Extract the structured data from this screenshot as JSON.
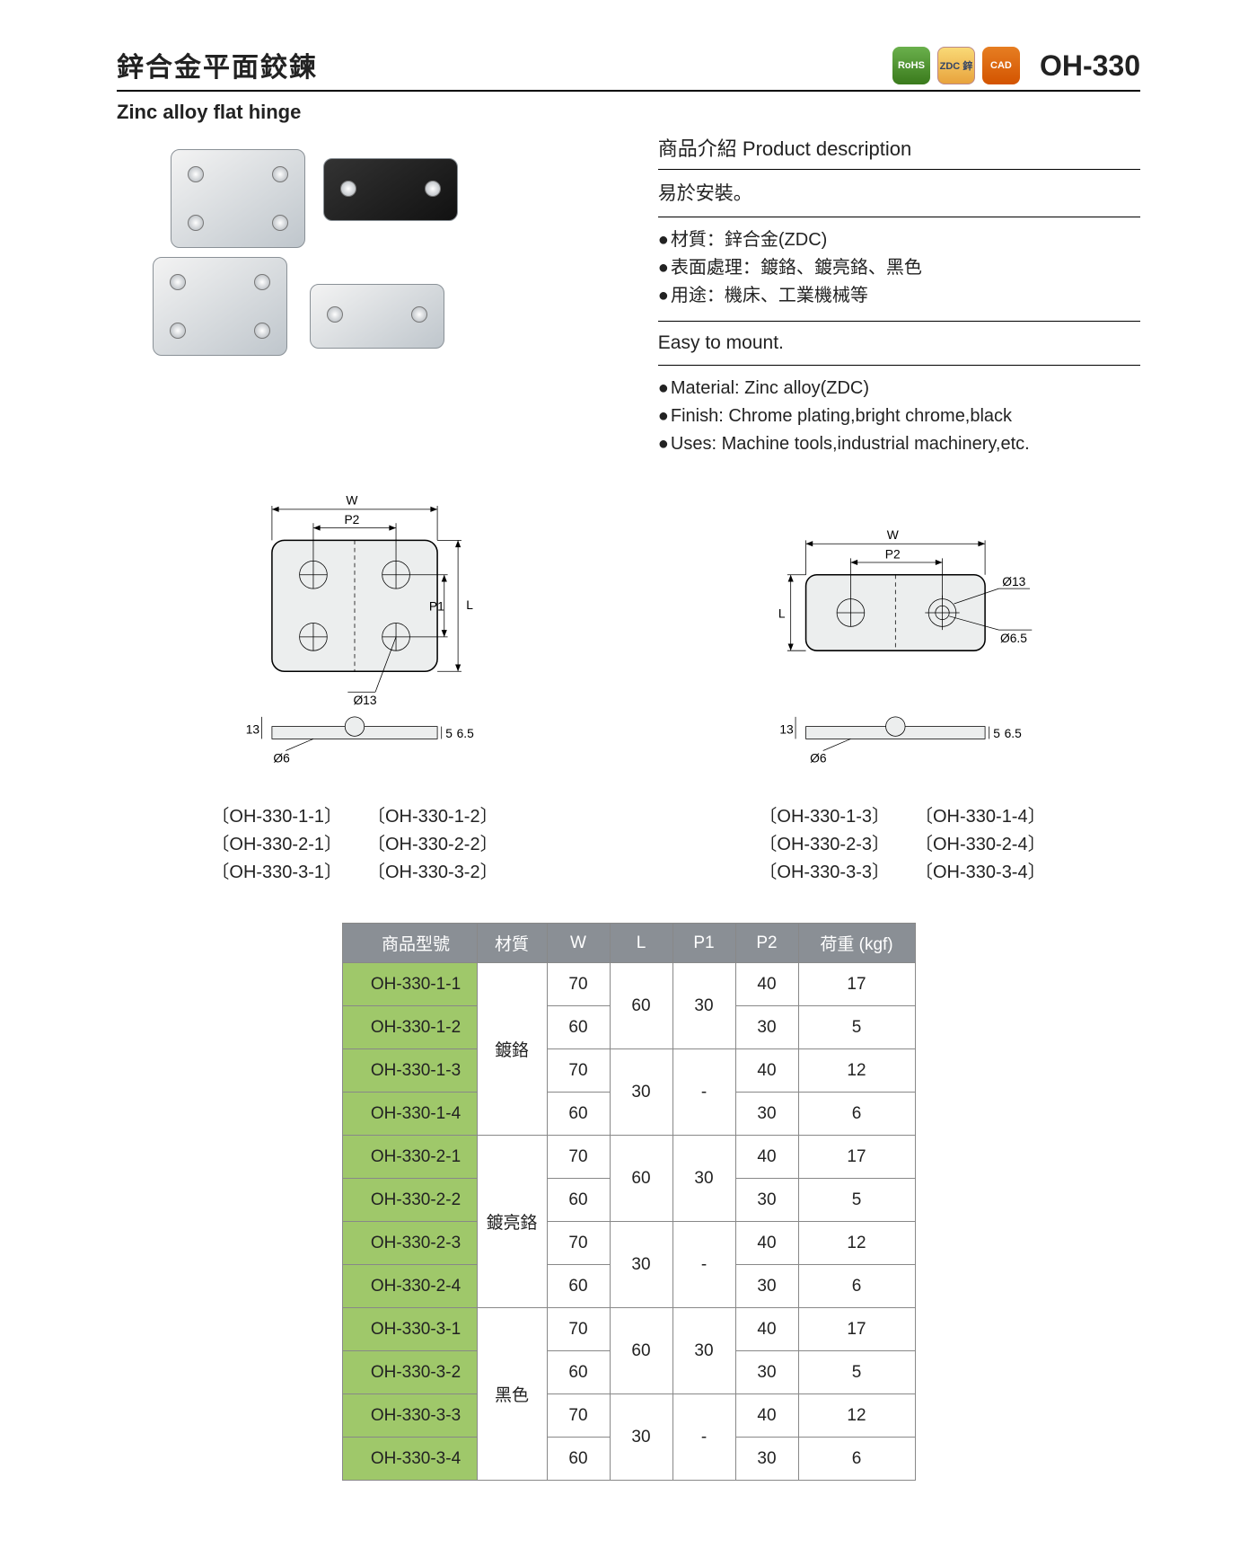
{
  "header": {
    "title_zh": "鋅合金平面鉸鍊",
    "title_en": "Zinc alloy flat hinge",
    "badges": [
      "RoHS",
      "ZDC 鋅",
      "CAD"
    ],
    "product_code": "OH-330"
  },
  "description": {
    "heading": "商品介紹 Product description",
    "sub_zh": "易於安裝。",
    "bullets_zh": [
      "材質：鋅合金(ZDC)",
      "表面處理：鍍鉻、鍍亮鉻、黑色",
      "用途：機床、工業機械等"
    ],
    "easy_en": "Easy to mount.",
    "bullets_en": [
      "Material: Zinc alloy(ZDC)",
      "Finish: Chrome plating,bright chrome,black",
      "Uses: Machine tools,industrial machinery,etc."
    ]
  },
  "diagrams": {
    "left": {
      "labels": {
        "W": "W",
        "P2": "P2",
        "P1": "P1",
        "L": "L",
        "d13": "Ø13",
        "d6": "Ø6",
        "t13": "13",
        "t5": "5",
        "t65": "6.5"
      },
      "models_col1": [
        "〔OH-330-1-1〕",
        "〔OH-330-2-1〕",
        "〔OH-330-3-1〕"
      ],
      "models_col2": [
        "〔OH-330-1-2〕",
        "〔OH-330-2-2〕",
        "〔OH-330-3-2〕"
      ]
    },
    "right": {
      "labels": {
        "W": "W",
        "P2": "P2",
        "L": "L",
        "d13": "Ø13",
        "d65": "Ø6.5",
        "d6": "Ø6",
        "t13": "13",
        "t5": "5",
        "t65": "6.5"
      },
      "models_col1": [
        "〔OH-330-1-3〕",
        "〔OH-330-2-3〕",
        "〔OH-330-3-3〕"
      ],
      "models_col2": [
        "〔OH-330-1-4〕",
        "〔OH-330-2-4〕",
        "〔OH-330-3-4〕"
      ]
    }
  },
  "spec_table": {
    "headers": [
      "商品型號",
      "材質",
      "W",
      "L",
      "P1",
      "P2",
      "荷重 (kgf)"
    ],
    "materials": [
      "鍍鉻",
      "鍍亮鉻",
      "黑色"
    ],
    "groups": [
      {
        "material_index": 0,
        "rows": [
          {
            "model": "OH-330-1-1",
            "W": "70",
            "L": "60",
            "P1": "30",
            "P2": "40",
            "load": "17",
            "L_rowspan": 2,
            "P1_rowspan": 2
          },
          {
            "model": "OH-330-1-2",
            "W": "60",
            "P2": "30",
            "load": "5"
          },
          {
            "model": "OH-330-1-3",
            "W": "70",
            "L": "30",
            "P1": "-",
            "P2": "40",
            "load": "12",
            "L_rowspan": 2,
            "P1_rowspan": 2
          },
          {
            "model": "OH-330-1-4",
            "W": "60",
            "P2": "30",
            "load": "6"
          }
        ]
      },
      {
        "material_index": 1,
        "rows": [
          {
            "model": "OH-330-2-1",
            "W": "70",
            "L": "60",
            "P1": "30",
            "P2": "40",
            "load": "17",
            "L_rowspan": 2,
            "P1_rowspan": 2
          },
          {
            "model": "OH-330-2-2",
            "W": "60",
            "P2": "30",
            "load": "5"
          },
          {
            "model": "OH-330-2-3",
            "W": "70",
            "L": "30",
            "P1": "-",
            "P2": "40",
            "load": "12",
            "L_rowspan": 2,
            "P1_rowspan": 2
          },
          {
            "model": "OH-330-2-4",
            "W": "60",
            "P2": "30",
            "load": "6"
          }
        ]
      },
      {
        "material_index": 2,
        "rows": [
          {
            "model": "OH-330-3-1",
            "W": "70",
            "L": "60",
            "P1": "30",
            "P2": "40",
            "load": "17",
            "L_rowspan": 2,
            "P1_rowspan": 2
          },
          {
            "model": "OH-330-3-2",
            "W": "60",
            "P2": "30",
            "load": "5"
          },
          {
            "model": "OH-330-3-3",
            "W": "70",
            "L": "30",
            "P1": "-",
            "P2": "40",
            "load": "12",
            "L_rowspan": 2,
            "P1_rowspan": 2
          },
          {
            "model": "OH-330-3-4",
            "W": "60",
            "P2": "30",
            "load": "6"
          }
        ]
      }
    ],
    "colors": {
      "header_bg": "#8a8f95",
      "header_fg": "#ffffff",
      "model_bg": "#9fc86a",
      "border": "#888888"
    }
  }
}
